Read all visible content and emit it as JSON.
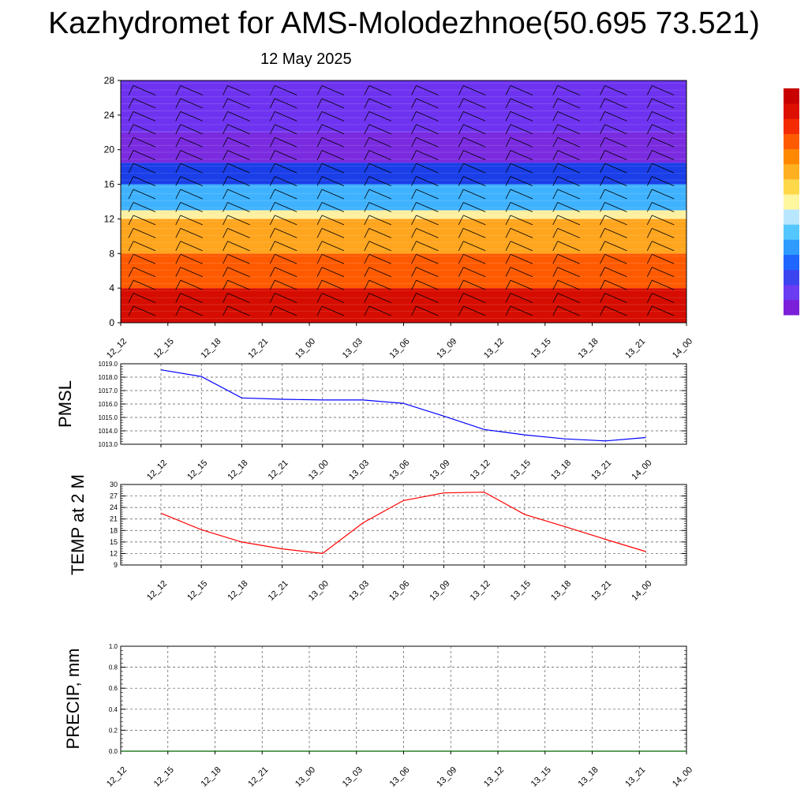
{
  "title": "Kazhydromet for AMS-Molodezhnoe(50.695 73.521)",
  "subtitle": "12 May 2025",
  "time_labels": [
    "12_12",
    "12_15",
    "12_18",
    "12_21",
    "13_00",
    "13_03",
    "13_06",
    "13_09",
    "13_12",
    "13_15",
    "13_18",
    "13_21",
    "14_00"
  ],
  "colors": {
    "pmsl_line": "#0000ff",
    "temp_line": "#ff0000",
    "precip_line": "#006400",
    "colorbar": [
      "#7c1fd8",
      "#6a3cf2",
      "#3c44f0",
      "#1f66ff",
      "#2f9bff",
      "#55c7ff",
      "#b9e6ff",
      "#fff6a0",
      "#ffd84a",
      "#ffb020",
      "#ff8800",
      "#ff5a00",
      "#f42b00",
      "#dd0f00",
      "#c80000"
    ]
  },
  "chart_data": [
    {
      "type": "heatmap",
      "name": "vertical-section",
      "x": [
        "12_12",
        "12_15",
        "12_18",
        "12_21",
        "13_00",
        "13_03",
        "13_06",
        "13_09",
        "13_12",
        "13_15",
        "13_18",
        "13_21",
        "14_00"
      ],
      "ylim": [
        0,
        28
      ],
      "yticks": [
        0,
        4,
        8,
        12,
        16,
        20,
        24,
        28
      ],
      "color_bands": [
        {
          "y_from": 0,
          "y_to": 4,
          "color": "#d60c00"
        },
        {
          "y_from": 4,
          "y_to": 8,
          "color": "#ff5a00"
        },
        {
          "y_from": 8,
          "y_to": 12,
          "color": "#ffa51e"
        },
        {
          "y_from": 12,
          "y_to": 13,
          "color": "#fff0a0"
        },
        {
          "y_from": 13,
          "y_to": 16,
          "color": "#3fb2ff"
        },
        {
          "y_from": 16,
          "y_to": 18.5,
          "color": "#1a3ee8"
        },
        {
          "y_from": 18.5,
          "y_to": 22,
          "color": "#7a2be0"
        },
        {
          "y_from": 22,
          "y_to": 28,
          "color": "#6e33f0"
        }
      ],
      "wind_barbs": true
    },
    {
      "type": "line",
      "name": "pmsl",
      "ylabel": "PMSL",
      "ylim": [
        1013.0,
        1019.0
      ],
      "yticks": [
        "1013.0",
        "1014.0",
        "1015.0",
        "1016.0",
        "1017.0",
        "1018.0",
        "1019.0"
      ],
      "x": [
        "12_12",
        "12_15",
        "12_18",
        "12_21",
        "13_00",
        "13_03",
        "13_06",
        "13_09",
        "13_12",
        "13_15",
        "13_18",
        "13_21",
        "14_00"
      ],
      "values": [
        1018.55,
        1018.05,
        1016.45,
        1016.35,
        1016.3,
        1016.3,
        1016.05,
        1015.1,
        1014.1,
        1013.7,
        1013.4,
        1013.25,
        1013.5
      ],
      "grid": true
    },
    {
      "type": "line",
      "name": "temp",
      "ylabel": "TEMP at 2 M",
      "ylim": [
        9,
        30
      ],
      "yticks": [
        "9",
        "12",
        "15",
        "18",
        "21",
        "24",
        "27",
        "30"
      ],
      "x": [
        "12_12",
        "12_15",
        "12_18",
        "12_21",
        "13_00",
        "13_03",
        "13_06",
        "13_09",
        "13_12",
        "13_15",
        "13_18",
        "13_21",
        "14_00"
      ],
      "values": [
        22.5,
        18.2,
        15.0,
        13.2,
        12.0,
        20.0,
        25.8,
        27.8,
        28.0,
        22.2,
        19.0,
        15.7,
        12.5
      ],
      "grid": true
    },
    {
      "type": "line",
      "name": "precip",
      "ylabel": "PRECIP, mm",
      "ylim": [
        0.0,
        1.0
      ],
      "yticks": [
        "0.0",
        "0.2",
        "0.4",
        "0.6",
        "0.8",
        "1.0"
      ],
      "x": [
        "12_12",
        "12_15",
        "12_18",
        "12_21",
        "13_00",
        "13_03",
        "13_06",
        "13_09",
        "13_12",
        "13_15",
        "13_18",
        "13_21",
        "14_00"
      ],
      "values": [
        0,
        0,
        0,
        0,
        0,
        0,
        0,
        0,
        0,
        0,
        0,
        0,
        0
      ],
      "grid": true
    }
  ]
}
